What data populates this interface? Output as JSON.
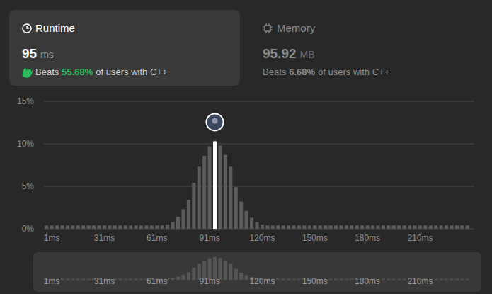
{
  "runtime": {
    "title": "Runtime",
    "value": "95",
    "unit": "ms",
    "beats_label": "Beats",
    "beats": "55.68%",
    "suffix": "of users with C++"
  },
  "memory": {
    "title": "Memory",
    "value": "95.92",
    "unit": "MB",
    "beats_label": "Beats",
    "beats": "6.68%",
    "suffix": "of users with C++"
  },
  "chart_data": {
    "type": "bar",
    "categories": [
      null,
      "1ms",
      null,
      null,
      null,
      null,
      null,
      null,
      null,
      null,
      null,
      "31ms",
      null,
      null,
      null,
      null,
      null,
      null,
      null,
      null,
      null,
      "61ms",
      null,
      null,
      null,
      null,
      null,
      null,
      null,
      null,
      null,
      "91ms",
      null,
      null,
      null,
      null,
      null,
      null,
      null,
      null,
      null,
      "120ms",
      null,
      null,
      null,
      null,
      null,
      null,
      null,
      null,
      null,
      "150ms",
      null,
      null,
      null,
      null,
      null,
      null,
      null,
      null,
      null,
      "180ms",
      null,
      null,
      null,
      null,
      null,
      null,
      null,
      null,
      null,
      "210ms",
      null,
      null,
      null,
      null,
      null,
      null,
      null,
      null,
      null
    ],
    "values": [
      0.4,
      0.4,
      0.4,
      0.4,
      0.4,
      0.4,
      0.4,
      0.4,
      0.4,
      0.4,
      0.4,
      0.4,
      0.4,
      0.4,
      0.4,
      0.4,
      0.4,
      0.4,
      0.4,
      0.4,
      0.4,
      0.4,
      0.4,
      0.5,
      0.8,
      1.4,
      2.3,
      3.4,
      5.4,
      7.3,
      8.6,
      9.7,
      10.3,
      9.8,
      8.7,
      7.3,
      4.9,
      3.2,
      2.1,
      1.3,
      0.8,
      0.5,
      0.4,
      0.4,
      0.4,
      0.4,
      0.4,
      0.4,
      0.4,
      0.4,
      0.4,
      0.4,
      0.4,
      0.4,
      0.4,
      0.4,
      0.4,
      0.4,
      0.4,
      0.4,
      0.4,
      0.4,
      0.4,
      0.4,
      0.4,
      0.4,
      0.4,
      0.4,
      0.4,
      0.4,
      0.4,
      0.4,
      0.4,
      0.4,
      0.4,
      0.4,
      0.4,
      0.4,
      0.4,
      0.4,
      0.4
    ],
    "colors": [
      "#5c5c5c",
      "#5c5c5c",
      "#5c5c5c",
      "#5c5c5c",
      "#5c5c5c",
      "#5c5c5c",
      "#5c5c5c",
      "#5c5c5c",
      "#5c5c5c",
      "#5c5c5c",
      "#5c5c5c",
      "#5c5c5c",
      "#5c5c5c",
      "#5c5c5c",
      "#5c5c5c",
      "#5c5c5c",
      "#5c5c5c",
      "#5c5c5c",
      "#5c5c5c",
      "#5c5c5c",
      "#5c5c5c",
      "#5c5c5c",
      "#5c5c5c",
      "#5c5c5c",
      "#5c5c5c",
      "#5c5c5c",
      "#5c5c5c",
      "#5c5c5c",
      "#5c5c5c",
      "#5c5c5c",
      "#5c5c5c",
      "#5c5c5c",
      "#ffffff",
      "#5c5c5c",
      "#5c5c5c",
      "#5c5c5c",
      "#5c5c5c",
      "#5c5c5c",
      "#5c5c5c",
      "#5c5c5c",
      "#5c5c5c",
      "#5c5c5c",
      "#5c5c5c",
      "#5c5c5c",
      "#5c5c5c",
      "#5c5c5c",
      "#5c5c5c",
      "#5c5c5c",
      "#5c5c5c",
      "#5c5c5c",
      "#5c5c5c",
      "#5c5c5c",
      "#5c5c5c",
      "#5c5c5c",
      "#5c5c5c",
      "#5c5c5c",
      "#5c5c5c",
      "#5c5c5c",
      "#5c5c5c",
      "#5c5c5c",
      "#5c5c5c",
      "#5c5c5c",
      "#5c5c5c",
      "#5c5c5c",
      "#5c5c5c",
      "#5c5c5c",
      "#5c5c5c",
      "#5c5c5c",
      "#5c5c5c",
      "#5c5c5c",
      "#5c5c5c",
      "#5c5c5c",
      "#5c5c5c",
      "#5c5c5c",
      "#5c5c5c",
      "#5c5c5c",
      "#5c5c5c",
      "#5c5c5c",
      "#5c5c5c",
      "#5c5c5c",
      "#5c5c5c"
    ],
    "ylim": [
      0,
      15
    ],
    "yticks": [
      {
        "value": 0,
        "label": "0%"
      },
      {
        "value": 5,
        "label": "5%"
      },
      {
        "value": 10,
        "label": "10%"
      },
      {
        "value": 15,
        "label": "15%"
      }
    ],
    "grid": true
  }
}
